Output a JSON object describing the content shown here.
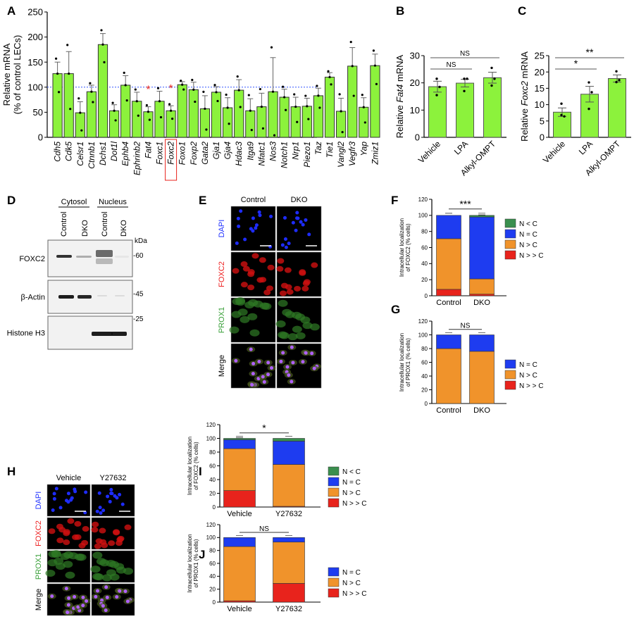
{
  "panels": {
    "A": "A",
    "B": "B",
    "C": "C",
    "D": "D",
    "E": "E",
    "F": "F",
    "G": "G",
    "H": "H",
    "I": "I",
    "J": "J"
  },
  "chart_data": [
    {
      "id": "A",
      "type": "bar",
      "ylabel": "Relative mRNA\n(% of control LECs)",
      "ylim": [
        0,
        250
      ],
      "yticks": [
        0,
        50,
        100,
        150,
        200,
        250
      ],
      "reference_line": 100,
      "reference_color": "#3355ff",
      "bar_color": "#8cf23c",
      "categories": [
        "Cdh5",
        "Cdk5",
        "Celsr1",
        "Ctnnb1",
        "Dchs1",
        "Dot1l",
        "Ephb4",
        "Ephrinb2",
        "Fat4",
        "Foxc1",
        "Foxc2",
        "Foxo1",
        "Foxp2",
        "Gata2",
        "Gja1",
        "Gja4",
        "Hdac3",
        "Itga9",
        "Nfatc1",
        "Nos3",
        "Notch1",
        "Nrp1",
        "Piezo1",
        "Taz",
        "Tie1",
        "Vangl2",
        "Vegfr3",
        "Yap",
        "Zmiz1"
      ],
      "values": [
        127,
        127,
        49,
        91,
        185,
        53,
        104,
        72,
        51,
        72,
        53,
        105,
        95,
        57,
        90,
        59,
        94,
        53,
        61,
        91,
        80,
        61,
        62,
        83,
        120,
        52,
        142,
        60,
        143
      ],
      "errors": [
        23,
        44,
        22,
        13,
        22,
        12,
        19,
        18,
        10,
        20,
        10,
        6,
        15,
        26,
        11,
        20,
        21,
        24,
        27,
        68,
        16,
        19,
        16,
        15,
        9,
        26,
        37,
        19,
        23
      ],
      "significant": [
        "Fat4",
        "Foxc2"
      ],
      "highlighted": "Foxc2",
      "significance_mark": "*"
    },
    {
      "id": "B",
      "type": "bar",
      "ylabel_pre": "Relative ",
      "ylabel_it": "Fat4",
      "ylabel_post": " mRNA",
      "ylim": [
        0,
        30
      ],
      "yticks": [
        0,
        10,
        20,
        30
      ],
      "categories": [
        "Vehicle",
        "LPA",
        "Alkyl-OMPT"
      ],
      "values": [
        18.6,
        19.9,
        21.9
      ],
      "errors": [
        2,
        1.4,
        2
      ],
      "points": [
        [
          21.5,
          18.5,
          15.5
        ],
        [
          21.5,
          21.5,
          17
        ],
        [
          25.5,
          21.5,
          19
        ]
      ],
      "comparisons": [
        {
          "from": 0,
          "to": 1,
          "label": "NS"
        },
        {
          "from": 0,
          "to": 2,
          "label": "NS"
        }
      ]
    },
    {
      "id": "C",
      "type": "bar",
      "ylabel_pre": "Relative ",
      "ylabel_it": "Foxc2",
      "ylabel_post": " mRNA",
      "ylim": [
        0,
        25
      ],
      "yticks": [
        0,
        5,
        10,
        15,
        20,
        25
      ],
      "categories": [
        "Vehicle",
        "LPA",
        "Alkyl-OMPT"
      ],
      "values": [
        7.7,
        13.2,
        18
      ],
      "errors": [
        1.3,
        2.4,
        1.1
      ],
      "points": [
        [
          10.3,
          6.4,
          6.8
        ],
        [
          16.8,
          13.8,
          8.7
        ],
        [
          20.2,
          17.5,
          16.9
        ]
      ],
      "comparisons": [
        {
          "from": 0,
          "to": 1,
          "label": "*"
        },
        {
          "from": 0,
          "to": 2,
          "label": "**"
        }
      ]
    },
    {
      "id": "F",
      "type": "stacked-bar",
      "ylabel": "Intracellular localization\nof FOXC2 (% cells)",
      "ylim": [
        0,
        120
      ],
      "yticks": [
        0,
        20,
        40,
        60,
        80,
        100,
        120
      ],
      "categories": [
        "Control",
        "DKO"
      ],
      "series": [
        {
          "name": "N > > C",
          "color": "#e8231c",
          "values": [
            8,
            2
          ]
        },
        {
          "name": "N > C",
          "color": "#f0932b",
          "values": [
            63,
            19
          ]
        },
        {
          "name": "N = C",
          "color": "#1e3cf0",
          "values": [
            29,
            77
          ]
        },
        {
          "name": "N < C",
          "color": "#3a8f4e",
          "values": [
            0,
            2
          ]
        }
      ],
      "comparison": "***"
    },
    {
      "id": "G",
      "type": "stacked-bar",
      "ylabel": "Intracellular localization\nof PROX1 (% cells)",
      "ylim": [
        0,
        120
      ],
      "yticks": [
        0,
        20,
        40,
        60,
        80,
        100,
        120
      ],
      "categories": [
        "Control",
        "DKO"
      ],
      "series": [
        {
          "name": "N > > C",
          "color": "#e8231c",
          "values": [
            0,
            0
          ]
        },
        {
          "name": "N > C",
          "color": "#f0932b",
          "values": [
            80,
            76
          ]
        },
        {
          "name": "N = C",
          "color": "#1e3cf0",
          "values": [
            20,
            24
          ]
        }
      ],
      "comparison": "NS"
    },
    {
      "id": "I",
      "type": "stacked-bar",
      "ylabel": "Intracellular localization\nof FOXC2 (% cells)",
      "ylim": [
        0,
        120
      ],
      "yticks": [
        0,
        20,
        40,
        60,
        80,
        100,
        120
      ],
      "categories": [
        "Vehicle",
        "Y27632"
      ],
      "series": [
        {
          "name": "N > > C",
          "color": "#e8231c",
          "values": [
            24,
            1
          ]
        },
        {
          "name": "N > C",
          "color": "#f0932b",
          "values": [
            61,
            61
          ]
        },
        {
          "name": "N = C",
          "color": "#1e3cf0",
          "values": [
            13,
            34
          ]
        },
        {
          "name": "N < C",
          "color": "#3a8f4e",
          "values": [
            2,
            4
          ]
        }
      ],
      "comparison": "*"
    },
    {
      "id": "J",
      "type": "stacked-bar",
      "ylabel": "Intracellular localization\nof PROX1 (% cells)",
      "ylim": [
        0,
        120
      ],
      "yticks": [
        0,
        20,
        40,
        60,
        80,
        100,
        120
      ],
      "categories": [
        "Vehicle",
        "Y27632"
      ],
      "series": [
        {
          "name": "N > > C",
          "color": "#e8231c",
          "values": [
            2,
            29
          ]
        },
        {
          "name": "N > C",
          "color": "#f0932b",
          "values": [
            84,
            64
          ]
        },
        {
          "name": "N = C",
          "color": "#1e3cf0",
          "values": [
            14,
            7
          ]
        }
      ],
      "comparison": "NS"
    }
  ],
  "western": {
    "groups": [
      "Cytosol",
      "Nucleus"
    ],
    "lanes": [
      "Control",
      "DKO",
      "Control",
      "DKO"
    ],
    "unit": "kDa",
    "blots": [
      {
        "label": "FOXC2",
        "marker": "-60"
      },
      {
        "label": "β-Actin",
        "marker": "-45"
      },
      {
        "label": "Histone H3",
        "marker": "-25"
      }
    ]
  },
  "imagesE": {
    "columns": [
      "Control",
      "DKO"
    ],
    "rows": [
      {
        "label": "DAPI",
        "color": "#2233ff"
      },
      {
        "label": "FOXC2",
        "color": "#ee2222"
      },
      {
        "label": "PROX1",
        "color": "#3aa03a"
      },
      {
        "label": "Merge",
        "color": "#000000"
      }
    ]
  },
  "imagesH": {
    "columns": [
      "Vehicle",
      "Y27632"
    ],
    "rows": [
      {
        "label": "DAPI",
        "color": "#2233ff"
      },
      {
        "label": "FOXC2",
        "color": "#ee2222"
      },
      {
        "label": "PROX1",
        "color": "#3aa03a"
      },
      {
        "label": "Merge",
        "color": "#000000"
      }
    ]
  }
}
